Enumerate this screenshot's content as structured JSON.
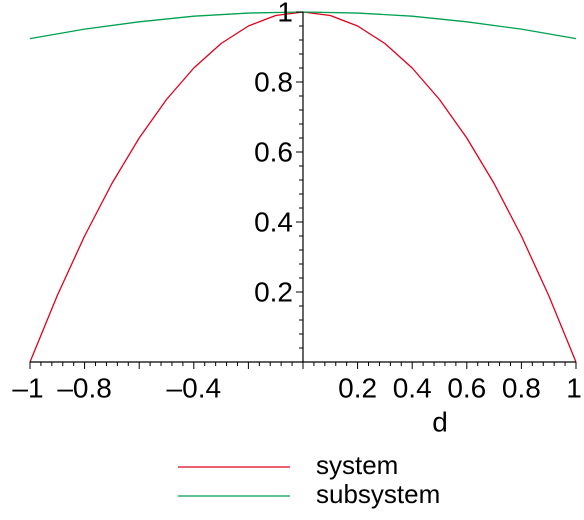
{
  "chart_data": {
    "type": "line",
    "title": "",
    "xlabel": "d",
    "ylabel": "",
    "xlim": [
      -1,
      1
    ],
    "ylim": [
      0,
      1
    ],
    "grid": false,
    "legend_position": "bottom-center",
    "x_tick_labels": [
      "–1",
      "–0.8",
      "–0.4",
      "0.2",
      "0.4",
      "0.6",
      "0.8",
      "1"
    ],
    "x_tick_values": [
      -1,
      -0.8,
      -0.4,
      0.2,
      0.4,
      0.6,
      0.8,
      1
    ],
    "y_tick_labels": [
      "0.2",
      "0.4",
      "0.6",
      "0.8",
      "1"
    ],
    "y_tick_values": [
      0.2,
      0.4,
      0.6,
      0.8,
      1
    ],
    "series": [
      {
        "name": "system",
        "color": "#e0001c",
        "x": [
          -1,
          -0.9,
          -0.8,
          -0.7,
          -0.6,
          -0.5,
          -0.4,
          -0.3,
          -0.2,
          -0.1,
          0,
          0.1,
          0.2,
          0.3,
          0.4,
          0.5,
          0.6,
          0.7,
          0.8,
          0.9,
          1
        ],
        "y": [
          0,
          0.19,
          0.36,
          0.51,
          0.64,
          0.75,
          0.84,
          0.91,
          0.96,
          0.99,
          1,
          0.99,
          0.96,
          0.91,
          0.84,
          0.75,
          0.64,
          0.51,
          0.36,
          0.19,
          0
        ]
      },
      {
        "name": "subsystem",
        "color": "#00a050",
        "x": [
          -1,
          -0.8,
          -0.6,
          -0.4,
          -0.2,
          0,
          0.2,
          0.4,
          0.6,
          0.8,
          1
        ],
        "y": [
          0.924,
          0.951,
          0.972,
          0.988,
          0.997,
          1,
          0.997,
          0.988,
          0.972,
          0.951,
          0.924
        ]
      }
    ]
  }
}
